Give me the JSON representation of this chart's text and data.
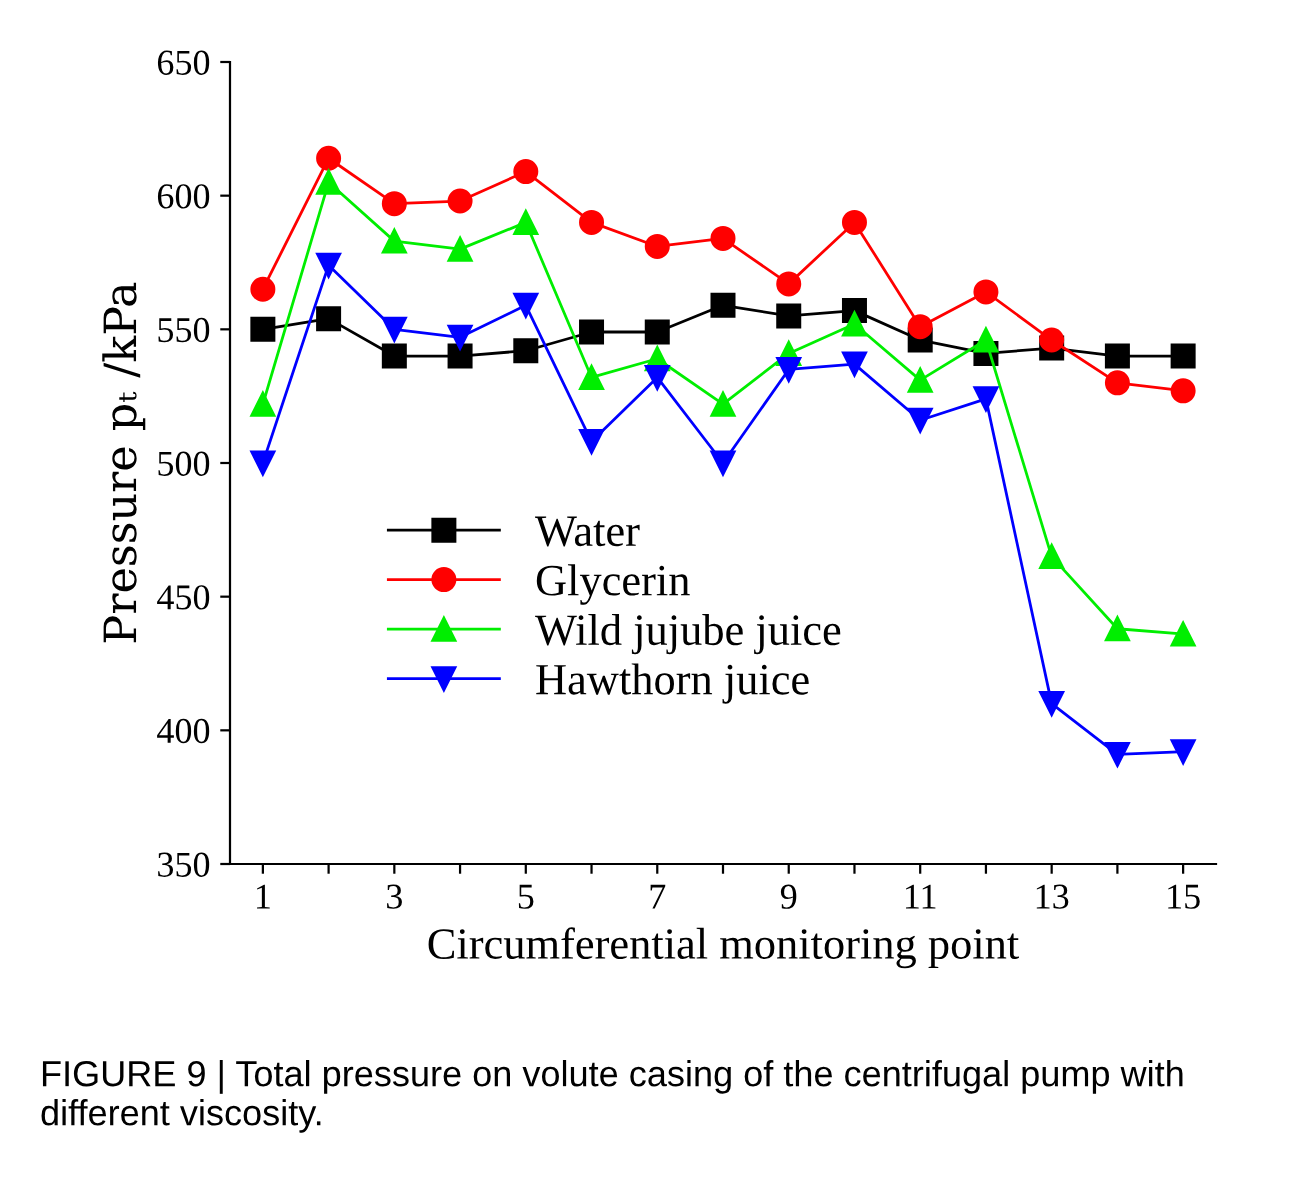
{
  "chart_data": {
    "type": "line",
    "xlabel": "Circumferential monitoring point",
    "ylabel": "Pressure pₜ /kPa",
    "x": [
      1,
      2,
      3,
      4,
      5,
      6,
      7,
      8,
      9,
      10,
      11,
      12,
      13,
      14,
      15
    ],
    "series": [
      {
        "name": "Water",
        "color": "#000000",
        "marker": "square",
        "values": [
          550,
          554,
          540,
          540,
          542,
          549,
          549,
          559,
          555,
          557,
          546,
          541,
          543,
          540,
          540
        ]
      },
      {
        "name": "Glycerin",
        "color": "#ff0000",
        "marker": "circle",
        "values": [
          565,
          614,
          597,
          598,
          609,
          590,
          581,
          584,
          567,
          590,
          551,
          564,
          546,
          530,
          527
        ]
      },
      {
        "name": "Wild jujube juice",
        "color": "#00ee00",
        "marker": "triangle",
        "values": [
          522,
          605,
          583,
          580,
          590,
          532,
          539,
          522,
          541,
          552,
          531,
          546,
          465,
          438,
          436
        ]
      },
      {
        "name": "Hawthorn juice",
        "color": "#0000ff",
        "marker": "triangle_down",
        "values": [
          500,
          574,
          550,
          547,
          559,
          508,
          532,
          500,
          535,
          537,
          516,
          524,
          410,
          391,
          392
        ]
      }
    ],
    "xlim": [
      0.5,
      15.5
    ],
    "xticks": [
      1,
      {
        "value": 2,
        "label": null
      },
      3,
      {
        "value": 4,
        "label": null
      },
      5,
      {
        "value": 6,
        "label": null
      },
      7,
      {
        "value": 8,
        "label": null
      },
      9,
      {
        "value": 10,
        "label": null
      },
      11,
      {
        "value": 12,
        "label": null
      },
      13,
      {
        "value": 14,
        "label": null
      },
      15
    ],
    "ylim": [
      350,
      650
    ],
    "yticks": [
      350,
      400,
      450,
      500,
      550,
      600,
      650
    ],
    "grid": false,
    "legend": "bottom left",
    "annotations": [
      "FIGURE 9 | Total pressure on volute casing of the centrifugal pump with different viscosity."
    ]
  }
}
